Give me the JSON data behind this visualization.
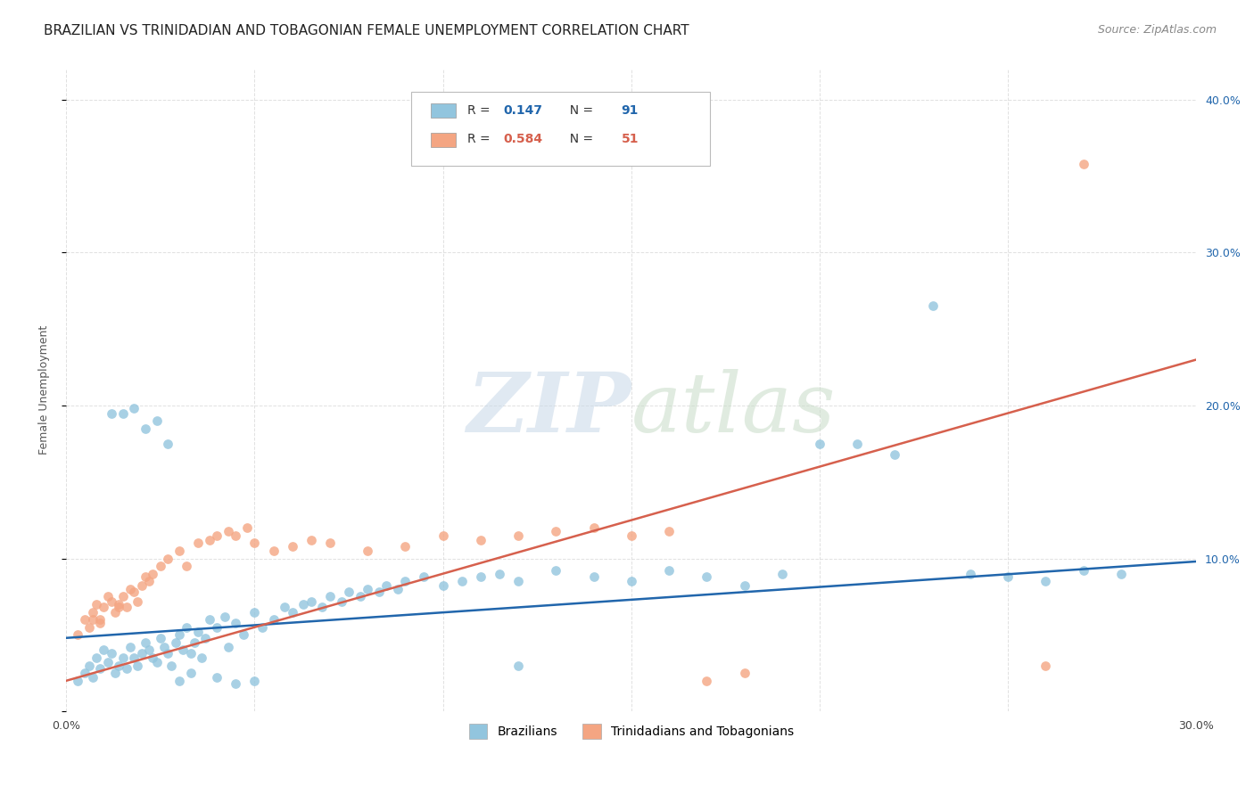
{
  "title": "BRAZILIAN VS TRINIDADIAN AND TOBAGONIAN FEMALE UNEMPLOYMENT CORRELATION CHART",
  "source": "Source: ZipAtlas.com",
  "ylabel": "Female Unemployment",
  "xlim": [
    0.0,
    0.3
  ],
  "ylim": [
    0.0,
    0.42
  ],
  "brazil_color": "#92c5de",
  "trinidad_color": "#f4a582",
  "brazil_line_color": "#2166ac",
  "trinidad_line_color": "#d6604d",
  "brazil_line_x": [
    0.0,
    0.3
  ],
  "brazil_line_y": [
    0.048,
    0.098
  ],
  "trinidad_line_x": [
    0.0,
    0.3
  ],
  "trinidad_line_y": [
    0.02,
    0.23
  ],
  "background_color": "#ffffff",
  "grid_color": "#d9d9d9",
  "title_fontsize": 11,
  "axis_label_fontsize": 9,
  "brazil_scatter_x": [
    0.003,
    0.005,
    0.006,
    0.007,
    0.008,
    0.009,
    0.01,
    0.011,
    0.012,
    0.013,
    0.014,
    0.015,
    0.016,
    0.017,
    0.018,
    0.019,
    0.02,
    0.021,
    0.022,
    0.023,
    0.024,
    0.025,
    0.026,
    0.027,
    0.028,
    0.029,
    0.03,
    0.031,
    0.032,
    0.033,
    0.034,
    0.035,
    0.036,
    0.037,
    0.038,
    0.04,
    0.042,
    0.043,
    0.045,
    0.047,
    0.05,
    0.052,
    0.055,
    0.058,
    0.06,
    0.063,
    0.065,
    0.068,
    0.07,
    0.073,
    0.075,
    0.078,
    0.08,
    0.083,
    0.085,
    0.088,
    0.09,
    0.095,
    0.1,
    0.105,
    0.11,
    0.115,
    0.12,
    0.13,
    0.14,
    0.15,
    0.16,
    0.17,
    0.18,
    0.19,
    0.2,
    0.21,
    0.22,
    0.23,
    0.24,
    0.25,
    0.26,
    0.27,
    0.28,
    0.012,
    0.015,
    0.018,
    0.021,
    0.024,
    0.027,
    0.03,
    0.033,
    0.04,
    0.045,
    0.05,
    0.12
  ],
  "brazil_scatter_y": [
    0.02,
    0.025,
    0.03,
    0.022,
    0.035,
    0.028,
    0.04,
    0.032,
    0.038,
    0.025,
    0.03,
    0.035,
    0.028,
    0.042,
    0.035,
    0.03,
    0.038,
    0.045,
    0.04,
    0.035,
    0.032,
    0.048,
    0.042,
    0.038,
    0.03,
    0.045,
    0.05,
    0.04,
    0.055,
    0.038,
    0.045,
    0.052,
    0.035,
    0.048,
    0.06,
    0.055,
    0.062,
    0.042,
    0.058,
    0.05,
    0.065,
    0.055,
    0.06,
    0.068,
    0.065,
    0.07,
    0.072,
    0.068,
    0.075,
    0.072,
    0.078,
    0.075,
    0.08,
    0.078,
    0.082,
    0.08,
    0.085,
    0.088,
    0.082,
    0.085,
    0.088,
    0.09,
    0.085,
    0.092,
    0.088,
    0.085,
    0.092,
    0.088,
    0.082,
    0.09,
    0.175,
    0.175,
    0.168,
    0.265,
    0.09,
    0.088,
    0.085,
    0.092,
    0.09,
    0.195,
    0.195,
    0.198,
    0.185,
    0.19,
    0.175,
    0.02,
    0.025,
    0.022,
    0.018,
    0.02,
    0.03
  ],
  "trinidad_scatter_x": [
    0.003,
    0.005,
    0.006,
    0.007,
    0.008,
    0.009,
    0.01,
    0.011,
    0.012,
    0.013,
    0.014,
    0.015,
    0.016,
    0.017,
    0.018,
    0.019,
    0.02,
    0.021,
    0.022,
    0.023,
    0.025,
    0.027,
    0.03,
    0.032,
    0.035,
    0.038,
    0.04,
    0.043,
    0.045,
    0.048,
    0.05,
    0.055,
    0.06,
    0.065,
    0.07,
    0.08,
    0.09,
    0.1,
    0.11,
    0.12,
    0.13,
    0.14,
    0.15,
    0.16,
    0.17,
    0.18,
    0.26,
    0.27,
    0.007,
    0.009,
    0.014
  ],
  "trinidad_scatter_y": [
    0.05,
    0.06,
    0.055,
    0.065,
    0.07,
    0.06,
    0.068,
    0.075,
    0.072,
    0.065,
    0.07,
    0.075,
    0.068,
    0.08,
    0.078,
    0.072,
    0.082,
    0.088,
    0.085,
    0.09,
    0.095,
    0.1,
    0.105,
    0.095,
    0.11,
    0.112,
    0.115,
    0.118,
    0.115,
    0.12,
    0.11,
    0.105,
    0.108,
    0.112,
    0.11,
    0.105,
    0.108,
    0.115,
    0.112,
    0.115,
    0.118,
    0.12,
    0.115,
    0.118,
    0.02,
    0.025,
    0.03,
    0.358,
    0.06,
    0.058,
    0.068
  ]
}
